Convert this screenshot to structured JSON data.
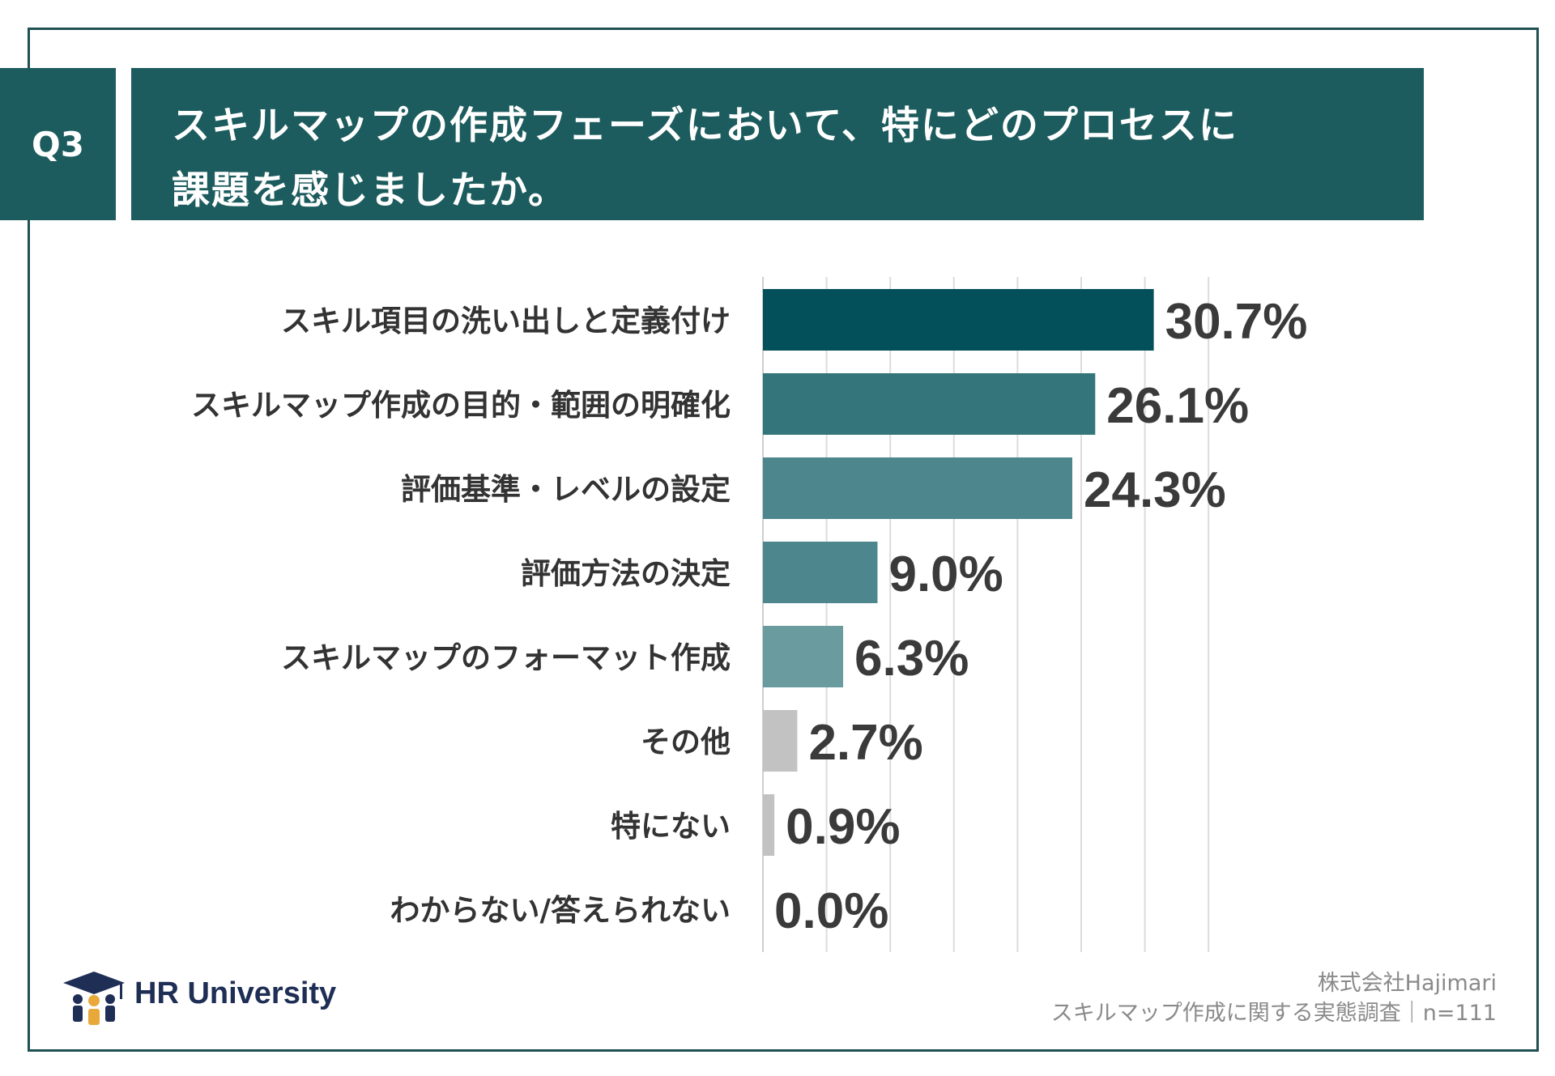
{
  "header": {
    "badge": "Q3",
    "title_line1": "スキルマップの作成フェーズにおいて、特にどのプロセスに",
    "title_line2": "課題を感じましたか。"
  },
  "chart_data": {
    "type": "bar",
    "orientation": "horizontal",
    "title": "スキルマップの作成フェーズにおいて、特にどのプロセスに課題を感じましたか。",
    "categories": [
      "スキル項目の洗い出しと定義付け",
      "スキルマップ作成の目的・範囲の明確化",
      "評価基準・レベルの設定",
      "評価方法の決定",
      "スキルマップのフォーマット作成",
      "その他",
      "特にない",
      "わからない/答えられない"
    ],
    "values": [
      30.7,
      26.1,
      24.3,
      9.0,
      6.3,
      2.7,
      0.9,
      0.0
    ],
    "value_labels": [
      "30.7%",
      "26.1%",
      "24.3%",
      "9.0%",
      "6.3%",
      "2.7%",
      "0.9%",
      "0.0%"
    ],
    "bar_colors": [
      "#04505a",
      "#33757b",
      "#4d868c",
      "#4d868c",
      "#6a9c9f",
      "#c2c2c2",
      "#c2c2c2",
      "#c2c2c2"
    ],
    "xlim": [
      0,
      35
    ],
    "grid": true,
    "unit": "%"
  },
  "footer": {
    "logo_text": "HR University",
    "company": "株式会社Hajimari",
    "survey": "スキルマップ作成に関する実態調査｜n=111"
  },
  "colors": {
    "header_bg": "#1d5c5e",
    "frame": "#1f5052",
    "label_text": "#333333"
  }
}
